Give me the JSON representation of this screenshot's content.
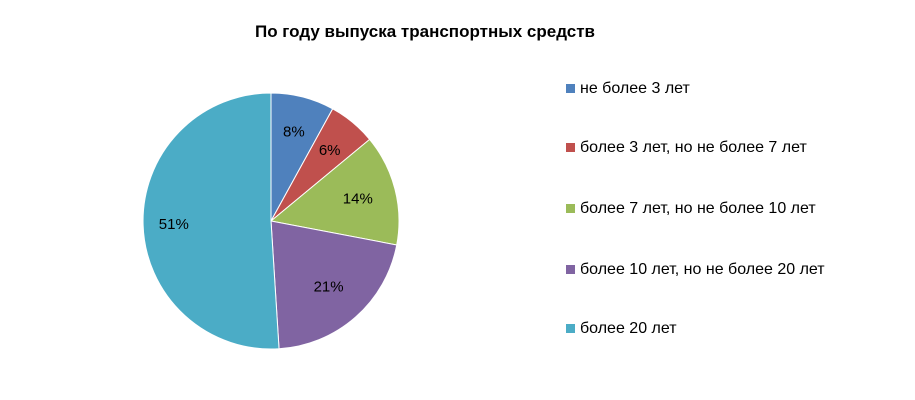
{
  "chart_data": {
    "type": "pie",
    "title": "По году выпуска транспортных средств",
    "categories": [
      "не более 3 лет",
      "более 3 лет, но не более 7 лет",
      "более 7 лет, но не более 10 лет",
      "более 10 лет, но не более 20 лет",
      "более 20 лет"
    ],
    "values": [
      8,
      6,
      14,
      21,
      51
    ],
    "data_labels": [
      "8%",
      "6%",
      "14%",
      "21%",
      "51%"
    ],
    "colors": [
      "#4f81bd",
      "#c0504d",
      "#9bbb59",
      "#8064a2",
      "#4bacc6"
    ],
    "legend_position": "right"
  }
}
